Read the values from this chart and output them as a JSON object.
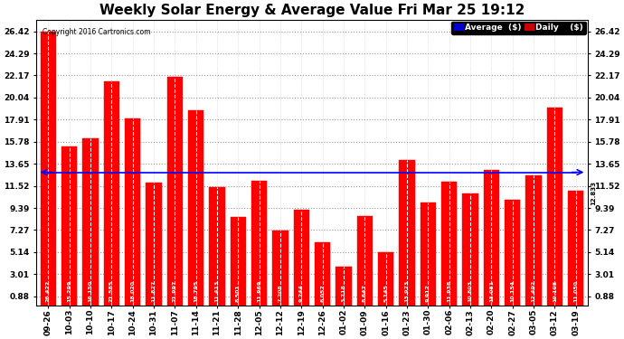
{
  "title": "Weekly Solar Energy & Average Value Fri Mar 25 19:12",
  "copyright": "Copyright 2016 Cartronics.com",
  "categories": [
    "09-26",
    "10-03",
    "10-10",
    "10-17",
    "10-24",
    "10-31",
    "11-07",
    "11-14",
    "11-21",
    "11-28",
    "12-05",
    "12-12",
    "12-19",
    "12-26",
    "01-02",
    "01-09",
    "01-16",
    "01-23",
    "01-30",
    "02-06",
    "02-13",
    "02-20",
    "02-27",
    "03-05",
    "03-12",
    "03-19"
  ],
  "values": [
    26.422,
    15.299,
    16.15,
    21.585,
    18.02,
    11.877,
    21.997,
    18.795,
    11.413,
    8.501,
    11.969,
    7.208,
    9.244,
    6.057,
    3.718,
    8.647,
    5.145,
    13.973,
    9.912,
    11.938,
    10.803,
    13.081,
    10.154,
    12.492,
    19.108,
    11.05
  ],
  "average": 12.833,
  "bar_color": "#ff0000",
  "average_line_color": "#0000ff",
  "background_color": "#ffffff",
  "plot_bg_color": "#ffffff",
  "grid_color": "#999999",
  "title_fontsize": 11,
  "ylim_min": 0,
  "ylim_max": 27.55,
  "yticks": [
    0.88,
    3.01,
    5.14,
    7.27,
    9.39,
    11.52,
    13.65,
    15.78,
    17.91,
    20.04,
    22.17,
    24.29,
    26.42
  ],
  "legend_avg_color": "#0000cc",
  "legend_daily_color": "#cc0000"
}
